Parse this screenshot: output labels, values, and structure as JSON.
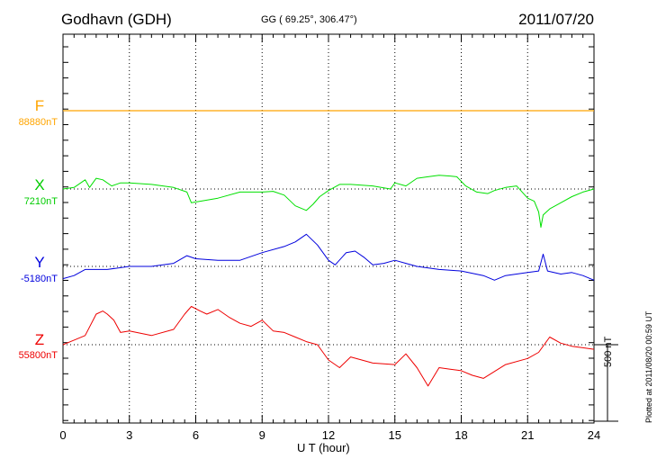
{
  "header": {
    "station": "Godhavn (GDH)",
    "coords": "GG ( 69.25°, 306.47°)",
    "date": "2011/07/20"
  },
  "chart_data": {
    "type": "line",
    "title": "Godhavn (GDH)",
    "xlabel": "U T (hour)",
    "ylabel": "",
    "xlim": [
      0,
      24
    ],
    "xticks": [
      "0",
      "3",
      "6",
      "9",
      "12",
      "15",
      "18",
      "21",
      "24"
    ],
    "grid": true,
    "scale_bar_label": "500 nT",
    "plotted_note": "Plotted at 2011/08/20 00:59 UT",
    "series": [
      {
        "name": "F",
        "baseline_label": "88880nT",
        "color": "#ffa500",
        "x": [
          0,
          24
        ],
        "y": [
          0,
          0
        ]
      },
      {
        "name": "X",
        "baseline_label": "7210nT",
        "color": "#00e000",
        "x": [
          0,
          0.5,
          1.0,
          1.2,
          1.5,
          1.8,
          2.2,
          2.6,
          3.0,
          4.0,
          5.0,
          5.6,
          5.8,
          6.2,
          7.0,
          8.0,
          9.0,
          9.5,
          10.0,
          10.5,
          11.0,
          11.3,
          11.6,
          12.0,
          12.5,
          13.0,
          14.0,
          14.8,
          15.0,
          15.5,
          16.0,
          16.5,
          17.0,
          17.5,
          17.8,
          18.2,
          18.7,
          19.2,
          19.5,
          20.0,
          20.5,
          21.0,
          21.3,
          21.5,
          21.6,
          21.7,
          22.0,
          22.5,
          23.0,
          23.5,
          24.0
        ],
        "y": [
          0,
          10,
          60,
          10,
          70,
          60,
          20,
          40,
          40,
          30,
          10,
          -20,
          -90,
          -80,
          -60,
          -20,
          -20,
          -15,
          -40,
          -110,
          -140,
          -100,
          -50,
          -10,
          30,
          30,
          20,
          0,
          40,
          20,
          70,
          80,
          90,
          85,
          80,
          20,
          -20,
          -30,
          -10,
          10,
          20,
          -60,
          -80,
          -150,
          -250,
          -170,
          -130,
          -90,
          -50,
          -20,
          0
        ]
      },
      {
        "name": "Y",
        "baseline_label": "-5180nT",
        "color": "#0000dd",
        "x": [
          0,
          0.5,
          1.0,
          2.0,
          3.0,
          4.0,
          5.0,
          5.6,
          6.0,
          7.0,
          8.0,
          9.0,
          10.0,
          10.5,
          11.0,
          11.5,
          12.0,
          12.3,
          12.8,
          13.2,
          13.6,
          14.0,
          14.5,
          15.0,
          15.5,
          16.0,
          17.0,
          18.0,
          19.0,
          19.5,
          20.0,
          20.5,
          21.0,
          21.5,
          21.7,
          21.9,
          22.5,
          23.0,
          23.5,
          24.0
        ],
        "y": [
          -80,
          -60,
          -20,
          -20,
          0,
          0,
          20,
          70,
          50,
          40,
          40,
          90,
          130,
          160,
          210,
          140,
          40,
          10,
          90,
          100,
          60,
          10,
          20,
          40,
          20,
          0,
          -20,
          -30,
          -60,
          -90,
          -60,
          -50,
          -40,
          -30,
          80,
          -30,
          -50,
          -40,
          -60,
          -90
        ]
      },
      {
        "name": "Z",
        "baseline_label": "55800nT",
        "color": "#ee0000",
        "x": [
          0,
          0.5,
          1.0,
          1.5,
          1.8,
          2.0,
          2.3,
          2.6,
          3.0,
          4.0,
          5.0,
          5.5,
          5.8,
          6.2,
          6.5,
          7.0,
          7.5,
          8.0,
          8.5,
          9.0,
          9.5,
          10.0,
          10.5,
          11.0,
          11.5,
          12.0,
          12.5,
          13.0,
          14.0,
          15.0,
          15.5,
          16.0,
          16.5,
          17.0,
          17.5,
          18.0,
          18.5,
          19.0,
          20.0,
          21.0,
          21.5,
          22.0,
          22.5,
          23.0,
          23.5,
          24.0
        ],
        "y": [
          0,
          30,
          60,
          200,
          220,
          200,
          160,
          80,
          90,
          60,
          100,
          200,
          250,
          220,
          200,
          230,
          180,
          140,
          120,
          160,
          90,
          80,
          50,
          20,
          0,
          -100,
          -150,
          -80,
          -120,
          -130,
          -60,
          -150,
          -270,
          -150,
          -160,
          -170,
          -200,
          -220,
          -130,
          -90,
          -50,
          50,
          10,
          -10,
          -20,
          -30
        ]
      }
    ]
  }
}
